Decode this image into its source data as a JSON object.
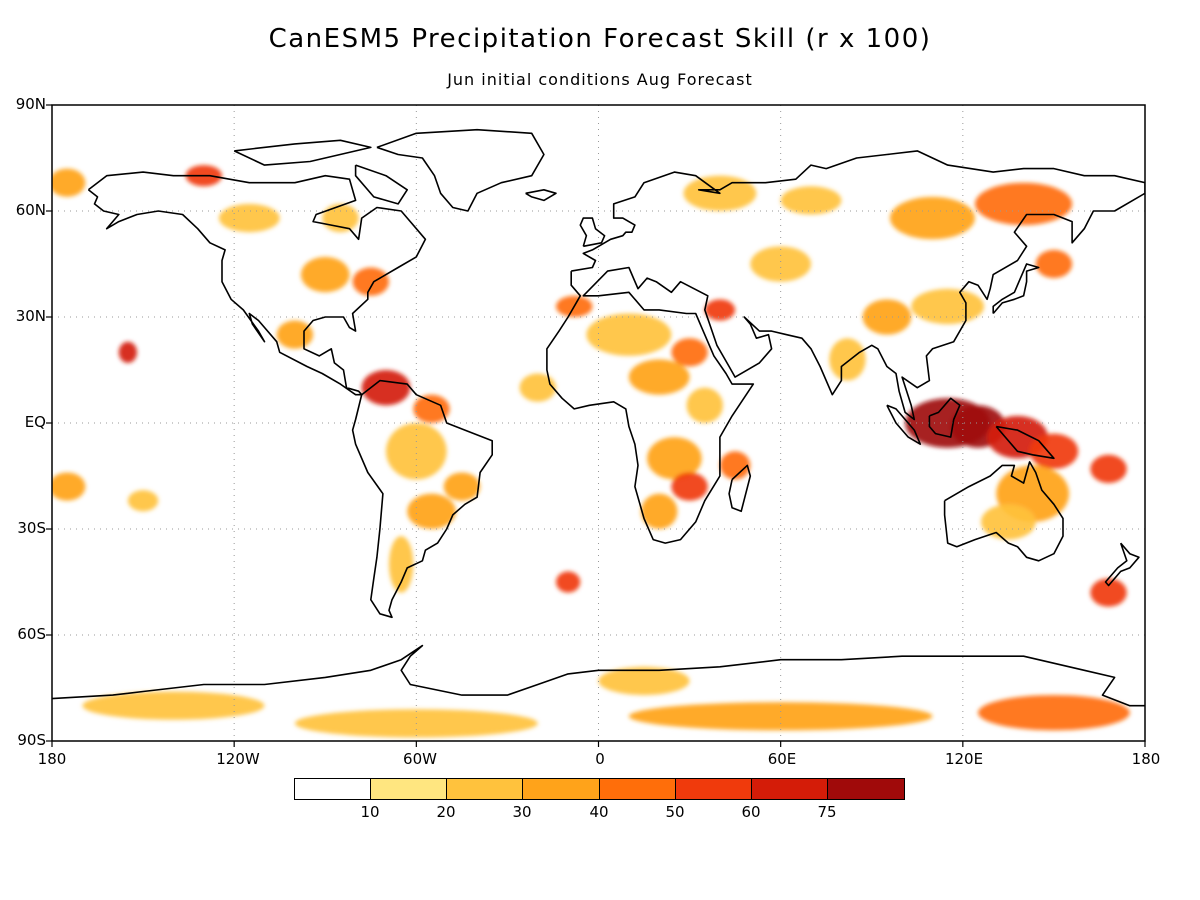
{
  "title": "CanESM5 Precipitation Forecast Skill (r x 100)",
  "subtitle": "Jun initial conditions  Aug Forecast",
  "lat_labels": [
    "90N",
    "60N",
    "30N",
    "EQ",
    "30S",
    "60S",
    "90S"
  ],
  "lon_labels": [
    "180",
    "120W",
    "60W",
    "0",
    "60E",
    "120E",
    "180"
  ],
  "legend": {
    "colors": [
      "#ffffff",
      "#ffe680",
      "#ffc23d",
      "#ffa31a",
      "#ff6e0a",
      "#f03a0c",
      "#d41c08",
      "#a00a0a"
    ],
    "ticks": [
      "10",
      "20",
      "30",
      "40",
      "50",
      "60",
      "75"
    ]
  },
  "chart_data": {
    "type": "heatmap",
    "xlim": [
      -180,
      180
    ],
    "ylim": [
      -90,
      90
    ],
    "x_ticks": [
      -180,
      -120,
      -60,
      0,
      60,
      120,
      180
    ],
    "y_ticks": [
      90,
      60,
      30,
      0,
      -30,
      -60,
      -90
    ],
    "grid": true,
    "color_levels": [
      10,
      20,
      30,
      40,
      50,
      60,
      75
    ],
    "skill_regions": [
      {
        "lon": 115,
        "lat": 0,
        "rx": 14,
        "ry": 7,
        "value": 75
      },
      {
        "lon": 125,
        "lat": -1,
        "rx": 9,
        "ry": 6,
        "value": 75
      },
      {
        "lon": 138,
        "lat": -4,
        "rx": 10,
        "ry": 6,
        "value": 60
      },
      {
        "lon": 150,
        "lat": -8,
        "rx": 8,
        "ry": 5,
        "value": 50
      },
      {
        "lon": 168,
        "lat": -13,
        "rx": 6,
        "ry": 4,
        "value": 50
      },
      {
        "lon": 143,
        "lat": -20,
        "rx": 12,
        "ry": 8,
        "value": 30
      },
      {
        "lon": 135,
        "lat": -28,
        "rx": 9,
        "ry": 5,
        "value": 20
      },
      {
        "lon": 168,
        "lat": -48,
        "rx": 6,
        "ry": 4,
        "value": 50
      },
      {
        "lon": 140,
        "lat": 62,
        "rx": 16,
        "ry": 6,
        "value": 40
      },
      {
        "lon": 110,
        "lat": 58,
        "rx": 14,
        "ry": 6,
        "value": 30
      },
      {
        "lon": 150,
        "lat": 45,
        "rx": 6,
        "ry": 4,
        "value": 40
      },
      {
        "lon": 115,
        "lat": 33,
        "rx": 12,
        "ry": 5,
        "value": 20
      },
      {
        "lon": 95,
        "lat": 30,
        "rx": 8,
        "ry": 5,
        "value": 30
      },
      {
        "lon": 82,
        "lat": 18,
        "rx": 6,
        "ry": 6,
        "value": 20
      },
      {
        "lon": 60,
        "lat": 45,
        "rx": 10,
        "ry": 5,
        "value": 20
      },
      {
        "lon": 70,
        "lat": 63,
        "rx": 10,
        "ry": 4,
        "value": 20
      },
      {
        "lon": 40,
        "lat": 65,
        "rx": 12,
        "ry": 5,
        "value": 20
      },
      {
        "lon": 10,
        "lat": 25,
        "rx": 14,
        "ry": 6,
        "value": 20
      },
      {
        "lon": 20,
        "lat": 13,
        "rx": 10,
        "ry": 5,
        "value": 30
      },
      {
        "lon": 30,
        "lat": 20,
        "rx": 6,
        "ry": 4,
        "value": 40
      },
      {
        "lon": 35,
        "lat": 5,
        "rx": 6,
        "ry": 5,
        "value": 20
      },
      {
        "lon": 25,
        "lat": -10,
        "rx": 9,
        "ry": 6,
        "value": 30
      },
      {
        "lon": 30,
        "lat": -18,
        "rx": 6,
        "ry": 4,
        "value": 50
      },
      {
        "lon": 20,
        "lat": -25,
        "rx": 6,
        "ry": 5,
        "value": 30
      },
      {
        "lon": 45,
        "lat": -12,
        "rx": 5,
        "ry": 4,
        "value": 40
      },
      {
        "lon": 40,
        "lat": 32,
        "rx": 5,
        "ry": 3,
        "value": 50
      },
      {
        "lon": -20,
        "lat": 10,
        "rx": 6,
        "ry": 4,
        "value": 20
      },
      {
        "lon": -8,
        "lat": 33,
        "rx": 6,
        "ry": 3,
        "value": 40
      },
      {
        "lon": -70,
        "lat": 10,
        "rx": 8,
        "ry": 5,
        "value": 60
      },
      {
        "lon": -55,
        "lat": 4,
        "rx": 6,
        "ry": 4,
        "value": 40
      },
      {
        "lon": -60,
        "lat": -8,
        "rx": 10,
        "ry": 8,
        "value": 20
      },
      {
        "lon": -45,
        "lat": -18,
        "rx": 6,
        "ry": 4,
        "value": 30
      },
      {
        "lon": -55,
        "lat": -25,
        "rx": 8,
        "ry": 5,
        "value": 30
      },
      {
        "lon": -65,
        "lat": -40,
        "rx": 4,
        "ry": 8,
        "value": 20
      },
      {
        "lon": -10,
        "lat": -45,
        "rx": 4,
        "ry": 3,
        "value": 50
      },
      {
        "lon": -100,
        "lat": 25,
        "rx": 6,
        "ry": 4,
        "value": 30
      },
      {
        "lon": -90,
        "lat": 42,
        "rx": 8,
        "ry": 5,
        "value": 30
      },
      {
        "lon": -75,
        "lat": 40,
        "rx": 6,
        "ry": 4,
        "value": 40
      },
      {
        "lon": -115,
        "lat": 58,
        "rx": 10,
        "ry": 4,
        "value": 20
      },
      {
        "lon": -85,
        "lat": 58,
        "rx": 6,
        "ry": 4,
        "value": 20
      },
      {
        "lon": -130,
        "lat": 70,
        "rx": 6,
        "ry": 3,
        "value": 50
      },
      {
        "lon": -175,
        "lat": 68,
        "rx": 6,
        "ry": 4,
        "value": 30
      },
      {
        "lon": -155,
        "lat": 20,
        "rx": 3,
        "ry": 3,
        "value": 60
      },
      {
        "lon": -175,
        "lat": -18,
        "rx": 6,
        "ry": 4,
        "value": 30
      },
      {
        "lon": -150,
        "lat": -22,
        "rx": 5,
        "ry": 3,
        "value": 20
      },
      {
        "lon": -60,
        "lat": -85,
        "rx": 40,
        "ry": 4,
        "value": 20
      },
      {
        "lon": 60,
        "lat": -83,
        "rx": 50,
        "ry": 4,
        "value": 30
      },
      {
        "lon": 150,
        "lat": -82,
        "rx": 25,
        "ry": 5,
        "value": 40
      },
      {
        "lon": 15,
        "lat": -73,
        "rx": 15,
        "ry": 4,
        "value": 20
      },
      {
        "lon": -140,
        "lat": -80,
        "rx": 30,
        "ry": 4,
        "value": 20
      }
    ]
  }
}
